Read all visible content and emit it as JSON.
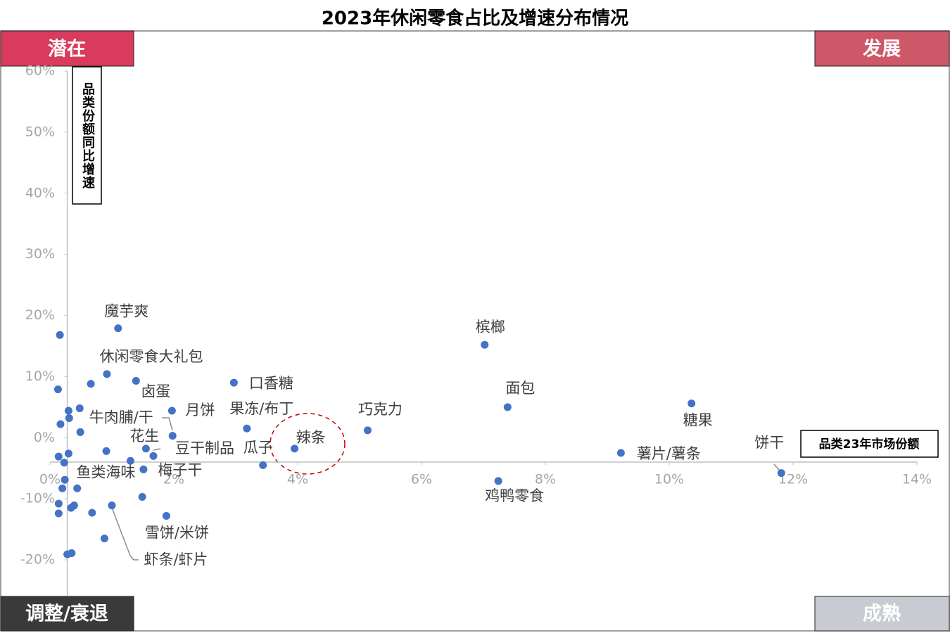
{
  "chart_data": {
    "type": "scatter",
    "title": "2023年休闲零食占比及增速分布情况",
    "x_axis_label": "品类23年市场份额",
    "y_axis_label": "品类份额同比增速",
    "quadrant_labels": {
      "top_left": "潜在",
      "top_right": "发展",
      "bottom_left": "调整/衰退",
      "bottom_right": "成熟"
    },
    "xlim": [
      0,
      14
    ],
    "xticks": [
      {
        "value": 0,
        "label": "0%"
      },
      {
        "value": 2,
        "label": "2%"
      },
      {
        "value": 4,
        "label": "4%"
      },
      {
        "value": 6,
        "label": "6%"
      },
      {
        "value": 8,
        "label": "8%"
      },
      {
        "value": 10,
        "label": "10%"
      },
      {
        "value": 12,
        "label": "12%"
      },
      {
        "value": 14,
        "label": "14%"
      }
    ],
    "ylim": [
      -20,
      60
    ],
    "yticks": [
      {
        "value": -20,
        "label": "-20%"
      },
      {
        "value": -10,
        "label": "-10%"
      },
      {
        "value": 0,
        "label": "0%"
      },
      {
        "value": 10,
        "label": "10%"
      },
      {
        "value": 20,
        "label": "20%"
      },
      {
        "value": 30,
        "label": "30%"
      },
      {
        "value": 40,
        "label": "40%"
      },
      {
        "value": 50,
        "label": "50%"
      },
      {
        "value": 60,
        "label": "60%"
      }
    ],
    "axis_cross": {
      "x": 0.28,
      "y": -4
    },
    "grid": false,
    "series": [
      {
        "color": "#4472c4",
        "x": [
          0.16,
          1.1,
          0.13,
          0.66,
          0.92,
          1.39,
          0.3,
          0.48,
          0.31,
          0.17,
          0.49,
          1.97,
          1.98,
          2.97,
          3.18,
          1.55,
          1.67,
          0.91,
          0.3,
          0.14,
          0.23,
          1.3,
          1.51,
          3.44,
          3.95,
          5.13,
          7.02,
          7.39,
          7.24,
          9.22,
          10.36,
          11.81,
          0.24,
          0.2,
          0.44,
          1.49,
          0.14,
          0.39,
          0.34,
          1.0,
          0.68,
          0.14,
          1.88,
          0.88,
          0.28,
          0.35
        ],
        "values": [
          16.8,
          17.9,
          7.9,
          8.8,
          10.4,
          9.3,
          4.4,
          4.8,
          3.2,
          2.2,
          0.9,
          4.4,
          0.3,
          9.0,
          1.5,
          -1.8,
          -3.0,
          -2.2,
          -2.6,
          -3.1,
          -4.1,
          -3.8,
          -5.2,
          -4.5,
          -1.8,
          1.2,
          15.2,
          5.0,
          -7.1,
          -2.5,
          5.6,
          -5.8,
          -6.9,
          -8.3,
          -8.3,
          -9.7,
          -10.8,
          -11.1,
          -11.5,
          -11.1,
          -12.3,
          -12.4,
          -12.8,
          -16.5,
          -19.1,
          -18.9
        ],
        "labels": [
          null,
          "魔芋爽",
          null,
          null,
          "休闲零食大礼包",
          "卤蛋",
          null,
          null,
          null,
          null,
          null,
          "月饼",
          "牛肉脯/干",
          "口香糖",
          "果冻/布丁",
          "花生",
          "豆干制品",
          null,
          null,
          null,
          null,
          "鱼类海味",
          "梅子干",
          "瓜子",
          "辣条",
          "巧克力",
          "槟榔",
          "面包",
          "鸡鸭零食",
          "薯片/薯条",
          "糖果",
          "饼干",
          null,
          null,
          null,
          null,
          null,
          null,
          null,
          "虾条/虾片",
          null,
          null,
          "雪饼/米饼",
          null,
          null,
          null
        ]
      }
    ]
  }
}
